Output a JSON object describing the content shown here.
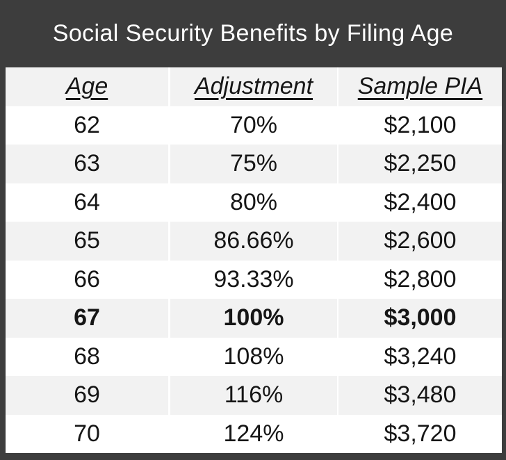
{
  "title": "Social Security Benefits by Filing Age",
  "table": {
    "columns": [
      "Age",
      "Adjustment",
      "Sample PIA"
    ],
    "rows": [
      {
        "age": "62",
        "adjustment": "70%",
        "pia": "$2,100"
      },
      {
        "age": "63",
        "adjustment": "75%",
        "pia": "$2,250"
      },
      {
        "age": "64",
        "adjustment": "80%",
        "pia": "$2,400"
      },
      {
        "age": "65",
        "adjustment": "86.66%",
        "pia": "$2,600"
      },
      {
        "age": "66",
        "adjustment": "93.33%",
        "pia": "$2,800"
      },
      {
        "age": "67",
        "adjustment": "100%",
        "pia": "$3,000"
      },
      {
        "age": "68",
        "adjustment": "108%",
        "pia": "$3,240"
      },
      {
        "age": "69",
        "adjustment": "116%",
        "pia": "$3,480"
      },
      {
        "age": "70",
        "adjustment": "124%",
        "pia": "$3,720"
      }
    ]
  },
  "chart_data": {
    "type": "table",
    "title": "Social Security Benefits by Filing Age",
    "columns": [
      "Age",
      "Adjustment",
      "Sample PIA"
    ],
    "rows": [
      [
        62,
        "70%",
        2100
      ],
      [
        63,
        "75%",
        2250
      ],
      [
        64,
        "80%",
        2400
      ],
      [
        65,
        "86.66%",
        2600
      ],
      [
        66,
        "93.33%",
        2800
      ],
      [
        67,
        "100%",
        3000
      ],
      [
        68,
        "108%",
        3240
      ],
      [
        69,
        "116%",
        3480
      ],
      [
        70,
        "124%",
        3720
      ]
    ],
    "emphasized_row_index": 5,
    "notes": "Row for age 67 (100%, $3,000) is shown in bold; header row labels are italic and underlined; rows alternate white and light gray."
  },
  "colors": {
    "frame_bg": "#3d3d3d",
    "row_bg": "#ffffff",
    "row_alt_bg": "#f2f2f2",
    "title_color": "#ffffff",
    "text_color": "#161616"
  }
}
